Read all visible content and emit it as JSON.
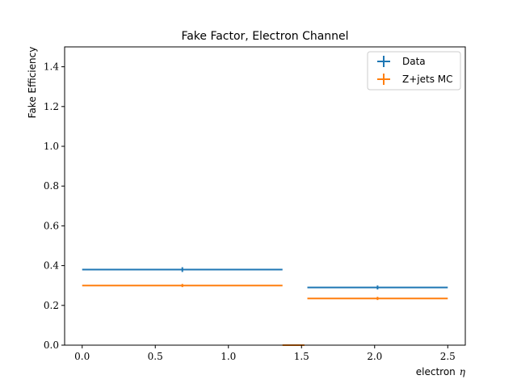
{
  "chart_data": {
    "type": "scatter",
    "title": "Fake Factor, Electron Channel",
    "xlabel": "electron",
    "xlabel_symbol": "η",
    "ylabel": "Fake Efficiency",
    "xlim": [
      -0.12,
      2.62
    ],
    "ylim": [
      0.0,
      1.5
    ],
    "xticks": [
      0.0,
      0.5,
      1.0,
      1.5,
      2.0,
      2.5
    ],
    "xtick_labels": [
      "0.0",
      "0.5",
      "1.0",
      "1.5",
      "2.0",
      "2.5"
    ],
    "yticks": [
      0.0,
      0.2,
      0.4,
      0.6,
      0.8,
      1.0,
      1.2,
      1.4
    ],
    "ytick_labels": [
      "0.0",
      "0.2",
      "0.4",
      "0.6",
      "0.8",
      "1.0",
      "1.2",
      "1.4"
    ],
    "grid": false,
    "legend_position": "top-right",
    "series": [
      {
        "name": "Data",
        "color": "#1f77b4",
        "points": [
          {
            "x": 0.685,
            "xerr": 0.685,
            "y": 0.38,
            "yerr": 0.012
          },
          {
            "x": 2.02,
            "xerr": 0.48,
            "y": 0.29,
            "yerr": 0.01
          }
        ]
      },
      {
        "name": "Z+jets MC",
        "color": "#ff7f0e",
        "points": [
          {
            "x": 0.685,
            "xerr": 0.685,
            "y": 0.3,
            "yerr": 0.008
          },
          {
            "x": 1.445,
            "xerr": 0.075,
            "y": 0.0,
            "yerr": 0.0
          },
          {
            "x": 2.02,
            "xerr": 0.48,
            "y": 0.235,
            "yerr": 0.008
          }
        ]
      }
    ]
  }
}
